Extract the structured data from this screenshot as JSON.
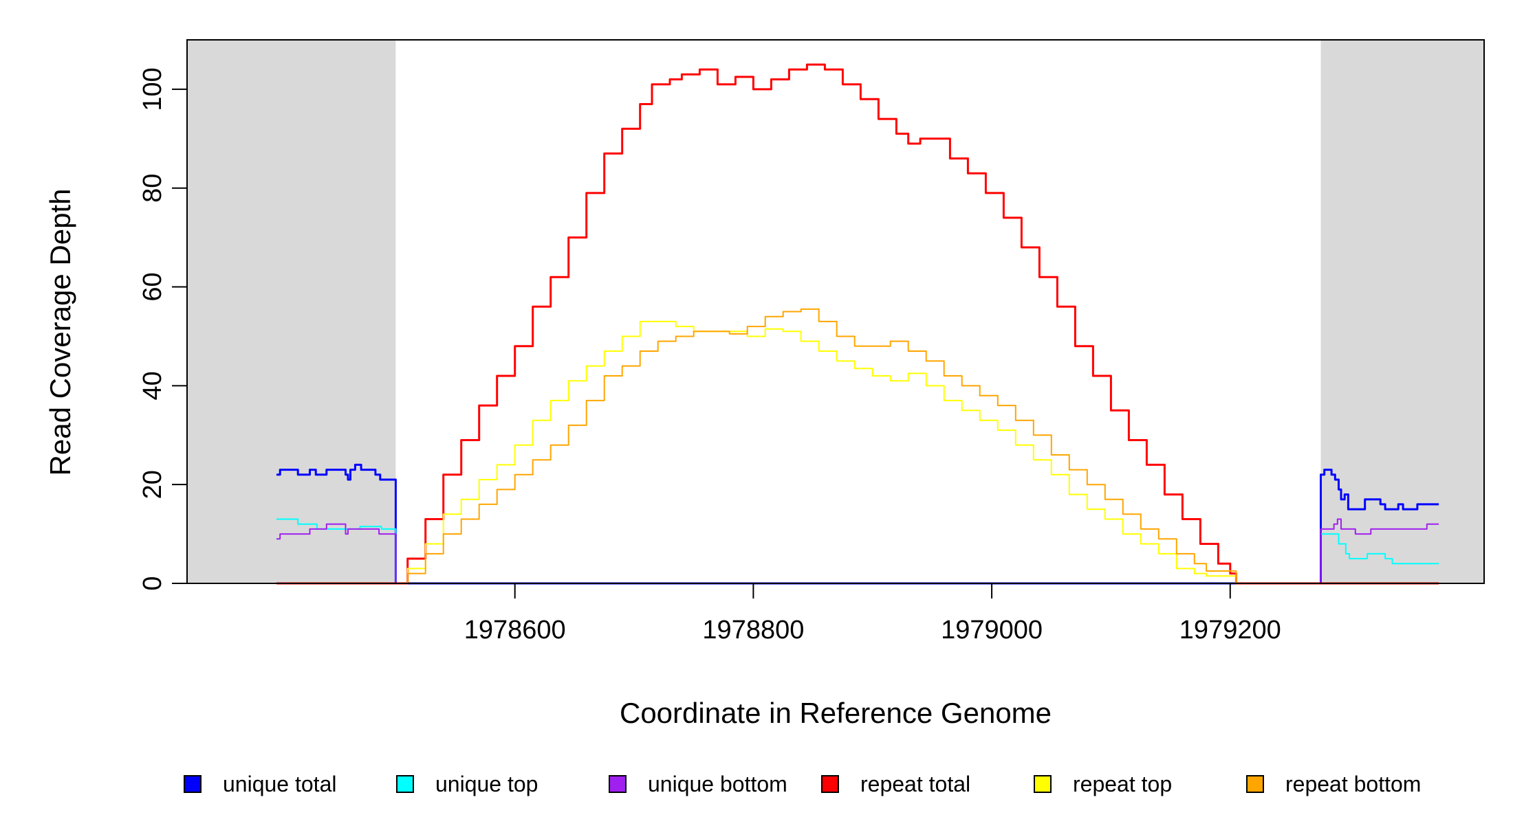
{
  "chart_data": {
    "type": "line",
    "title": "",
    "xlabel": "Coordinate in Reference Genome",
    "ylabel": "Read Coverage Depth",
    "xlim": [
      1978325,
      1979413
    ],
    "ylim": [
      0,
      110
    ],
    "x_ticks": [
      1978600,
      1978800,
      1979000,
      1979200
    ],
    "x_tick_labels": [
      "1978600",
      "1978800",
      "1979000",
      "1979200"
    ],
    "y_ticks": [
      0,
      20,
      40,
      60,
      80,
      100
    ],
    "y_tick_labels": [
      "0",
      "20",
      "40",
      "60",
      "80",
      "100"
    ],
    "grid": false,
    "legend_position": "bottom",
    "shaded_regions": [
      {
        "x_start": 1978400,
        "x_end": 1978500,
        "color": "#d9d9d9"
      },
      {
        "x_start": 1979276,
        "x_end": 1979375,
        "color": "#d9d9d9"
      }
    ],
    "series": [
      {
        "name": "unique total",
        "color": "#0000ff",
        "width": 3,
        "points": [
          [
            1978400,
            22
          ],
          [
            1978403,
            23
          ],
          [
            1978418,
            22
          ],
          [
            1978428,
            23
          ],
          [
            1978433,
            22
          ],
          [
            1978442,
            23
          ],
          [
            1978458,
            22
          ],
          [
            1978460,
            21
          ],
          [
            1978462,
            23
          ],
          [
            1978466,
            24
          ],
          [
            1978471,
            23
          ],
          [
            1978483,
            22
          ],
          [
            1978487,
            21
          ],
          [
            1978500,
            21
          ],
          [
            1978500,
            0
          ],
          [
            1979275,
            0
          ],
          [
            1979276,
            22
          ],
          [
            1979279,
            23
          ],
          [
            1979285,
            22
          ],
          [
            1979288,
            21
          ],
          [
            1979291,
            19
          ],
          [
            1979293,
            17
          ],
          [
            1979296,
            18
          ],
          [
            1979299,
            15
          ],
          [
            1979313,
            17
          ],
          [
            1979326,
            16
          ],
          [
            1979330,
            15
          ],
          [
            1979341,
            16
          ],
          [
            1979345,
            15
          ],
          [
            1979357,
            16
          ],
          [
            1979366,
            16
          ],
          [
            1979375,
            16
          ]
        ]
      },
      {
        "name": "unique top",
        "color": "#00ffff",
        "width": 2,
        "points": [
          [
            1978400,
            13
          ],
          [
            1978418,
            12
          ],
          [
            1978434,
            11
          ],
          [
            1978450,
            11
          ],
          [
            1978470,
            11.5
          ],
          [
            1978488,
            11
          ],
          [
            1978500,
            11
          ],
          [
            1978500,
            0
          ],
          [
            1979275,
            0
          ],
          [
            1979276,
            10
          ],
          [
            1979285,
            10
          ],
          [
            1979291,
            8
          ],
          [
            1979297,
            6
          ],
          [
            1979300,
            5
          ],
          [
            1979315,
            6
          ],
          [
            1979330,
            5
          ],
          [
            1979336,
            4
          ],
          [
            1979375,
            4
          ]
        ]
      },
      {
        "name": "unique bottom",
        "color": "#a020f0",
        "width": 2,
        "points": [
          [
            1978400,
            9
          ],
          [
            1978403,
            10
          ],
          [
            1978428,
            11
          ],
          [
            1978442,
            12
          ],
          [
            1978458,
            10
          ],
          [
            1978460,
            11
          ],
          [
            1978471,
            11
          ],
          [
            1978486,
            10
          ],
          [
            1978500,
            10
          ],
          [
            1978500,
            0
          ],
          [
            1979275,
            0
          ],
          [
            1979276,
            11
          ],
          [
            1979287,
            12
          ],
          [
            1979290,
            13
          ],
          [
            1979293,
            11
          ],
          [
            1979299,
            11
          ],
          [
            1979305,
            10
          ],
          [
            1979318,
            11
          ],
          [
            1979345,
            11
          ],
          [
            1979365,
            12
          ],
          [
            1979375,
            12
          ]
        ]
      },
      {
        "name": "repeat total",
        "color": "#ff0000",
        "width": 3,
        "points": [
          [
            1978400,
            0
          ],
          [
            1978500,
            0
          ],
          [
            1978510,
            5
          ],
          [
            1978525,
            13
          ],
          [
            1978540,
            22
          ],
          [
            1978555,
            29
          ],
          [
            1978570,
            36
          ],
          [
            1978585,
            42
          ],
          [
            1978600,
            48
          ],
          [
            1978615,
            56
          ],
          [
            1978630,
            62
          ],
          [
            1978645,
            70
          ],
          [
            1978660,
            79
          ],
          [
            1978675,
            87
          ],
          [
            1978690,
            92
          ],
          [
            1978705,
            97
          ],
          [
            1978715,
            101
          ],
          [
            1978730,
            102
          ],
          [
            1978740,
            103
          ],
          [
            1978755,
            104
          ],
          [
            1978770,
            101
          ],
          [
            1978785,
            102.5
          ],
          [
            1978800,
            100
          ],
          [
            1978815,
            102
          ],
          [
            1978830,
            104
          ],
          [
            1978845,
            105
          ],
          [
            1978860,
            104
          ],
          [
            1978875,
            101
          ],
          [
            1978890,
            98
          ],
          [
            1978905,
            94
          ],
          [
            1978920,
            91
          ],
          [
            1978930,
            89
          ],
          [
            1978940,
            90
          ],
          [
            1978955,
            90
          ],
          [
            1978965,
            86
          ],
          [
            1978980,
            83
          ],
          [
            1978995,
            79
          ],
          [
            1979010,
            74
          ],
          [
            1979025,
            68
          ],
          [
            1979040,
            62
          ],
          [
            1979055,
            56
          ],
          [
            1979070,
            48
          ],
          [
            1979085,
            42
          ],
          [
            1979100,
            35
          ],
          [
            1979115,
            29
          ],
          [
            1979130,
            24
          ],
          [
            1979145,
            18
          ],
          [
            1979160,
            13
          ],
          [
            1979175,
            8
          ],
          [
            1979190,
            4
          ],
          [
            1979200,
            2
          ],
          [
            1979205,
            0
          ],
          [
            1979375,
            0
          ]
        ]
      },
      {
        "name": "repeat top",
        "color": "#ffff00",
        "width": 2,
        "points": [
          [
            1978400,
            0
          ],
          [
            1978500,
            0
          ],
          [
            1978510,
            3
          ],
          [
            1978525,
            8
          ],
          [
            1978540,
            14
          ],
          [
            1978555,
            17
          ],
          [
            1978570,
            21
          ],
          [
            1978585,
            24
          ],
          [
            1978600,
            28
          ],
          [
            1978615,
            33
          ],
          [
            1978630,
            37
          ],
          [
            1978645,
            41
          ],
          [
            1978660,
            44
          ],
          [
            1978675,
            47
          ],
          [
            1978690,
            50
          ],
          [
            1978705,
            53
          ],
          [
            1978720,
            53
          ],
          [
            1978735,
            52
          ],
          [
            1978750,
            51
          ],
          [
            1978765,
            51
          ],
          [
            1978780,
            51
          ],
          [
            1978795,
            50
          ],
          [
            1978810,
            51.5
          ],
          [
            1978825,
            51
          ],
          [
            1978840,
            49
          ],
          [
            1978855,
            47
          ],
          [
            1978870,
            45
          ],
          [
            1978885,
            43.5
          ],
          [
            1978900,
            42
          ],
          [
            1978915,
            41
          ],
          [
            1978930,
            42.5
          ],
          [
            1978945,
            40
          ],
          [
            1978960,
            37
          ],
          [
            1978975,
            35
          ],
          [
            1978990,
            33
          ],
          [
            1979005,
            31
          ],
          [
            1979020,
            28
          ],
          [
            1979035,
            25
          ],
          [
            1979050,
            22
          ],
          [
            1979065,
            18
          ],
          [
            1979080,
            15
          ],
          [
            1979095,
            13
          ],
          [
            1979110,
            10
          ],
          [
            1979125,
            8
          ],
          [
            1979140,
            6
          ],
          [
            1979155,
            3
          ],
          [
            1979170,
            2
          ],
          [
            1979180,
            1.5
          ],
          [
            1979205,
            0
          ],
          [
            1979375,
            0
          ]
        ]
      },
      {
        "name": "repeat bottom",
        "color": "#ffa500",
        "width": 2,
        "points": [
          [
            1978400,
            0
          ],
          [
            1978500,
            0
          ],
          [
            1978510,
            2
          ],
          [
            1978525,
            6
          ],
          [
            1978540,
            10
          ],
          [
            1978555,
            13
          ],
          [
            1978570,
            16
          ],
          [
            1978585,
            19
          ],
          [
            1978600,
            22
          ],
          [
            1978615,
            25
          ],
          [
            1978630,
            28
          ],
          [
            1978645,
            32
          ],
          [
            1978660,
            37
          ],
          [
            1978675,
            42
          ],
          [
            1978690,
            44
          ],
          [
            1978705,
            47
          ],
          [
            1978720,
            49
          ],
          [
            1978735,
            50
          ],
          [
            1978750,
            51
          ],
          [
            1978765,
            51
          ],
          [
            1978780,
            50.5
          ],
          [
            1978795,
            52
          ],
          [
            1978810,
            54
          ],
          [
            1978825,
            55
          ],
          [
            1978840,
            55.5
          ],
          [
            1978855,
            53
          ],
          [
            1978870,
            50
          ],
          [
            1978885,
            48
          ],
          [
            1978900,
            48
          ],
          [
            1978915,
            49
          ],
          [
            1978930,
            47
          ],
          [
            1978945,
            45
          ],
          [
            1978960,
            42
          ],
          [
            1978975,
            40
          ],
          [
            1978990,
            38
          ],
          [
            1979005,
            36
          ],
          [
            1979020,
            33
          ],
          [
            1979035,
            30
          ],
          [
            1979050,
            26
          ],
          [
            1979065,
            23
          ],
          [
            1979080,
            20
          ],
          [
            1979095,
            17
          ],
          [
            1979110,
            14
          ],
          [
            1979125,
            11
          ],
          [
            1979140,
            9
          ],
          [
            1979155,
            6
          ],
          [
            1979170,
            4
          ],
          [
            1979180,
            2.5
          ],
          [
            1979205,
            0
          ],
          [
            1979375,
            0
          ]
        ]
      }
    ]
  }
}
